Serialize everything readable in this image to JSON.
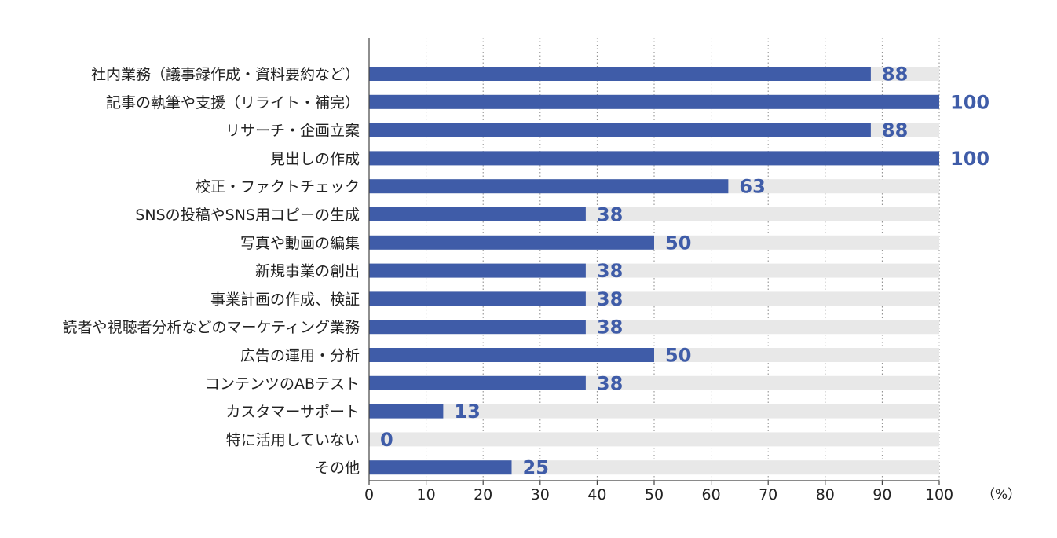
{
  "chart_data": {
    "type": "bar",
    "orientation": "horizontal",
    "categories": [
      "社内業務（議事録作成・資料要約など）",
      "記事の執筆や支援（リライト・補完）",
      "リサーチ・企画立案",
      "見出しの作成",
      "校正・ファクトチェック",
      "SNSの投稿やSNS用コピーの生成",
      "写真や動画の編集",
      "新規事業の創出",
      "事業計画の作成、検証",
      "読者や視聴者分析などのマーケティング業務",
      "広告の運用・分析",
      "コンテンツのABテスト",
      "カスタマーサポート",
      "特に活用していない",
      "その他"
    ],
    "values": [
      88,
      100,
      88,
      100,
      63,
      38,
      50,
      38,
      38,
      38,
      50,
      38,
      13,
      0,
      25
    ],
    "xlim": [
      0,
      100
    ],
    "x_ticks": [
      "0",
      "10",
      "20",
      "30",
      "40",
      "50",
      "60",
      "70",
      "80",
      "90",
      "100"
    ],
    "x_unit": "（%）",
    "grid": "vertical dotted",
    "colors": {
      "bar": "#3f5ca8",
      "track": "#e8e8e8",
      "value_text": "#3f5ca8",
      "axis": "#444444",
      "grid": "#888888"
    }
  }
}
